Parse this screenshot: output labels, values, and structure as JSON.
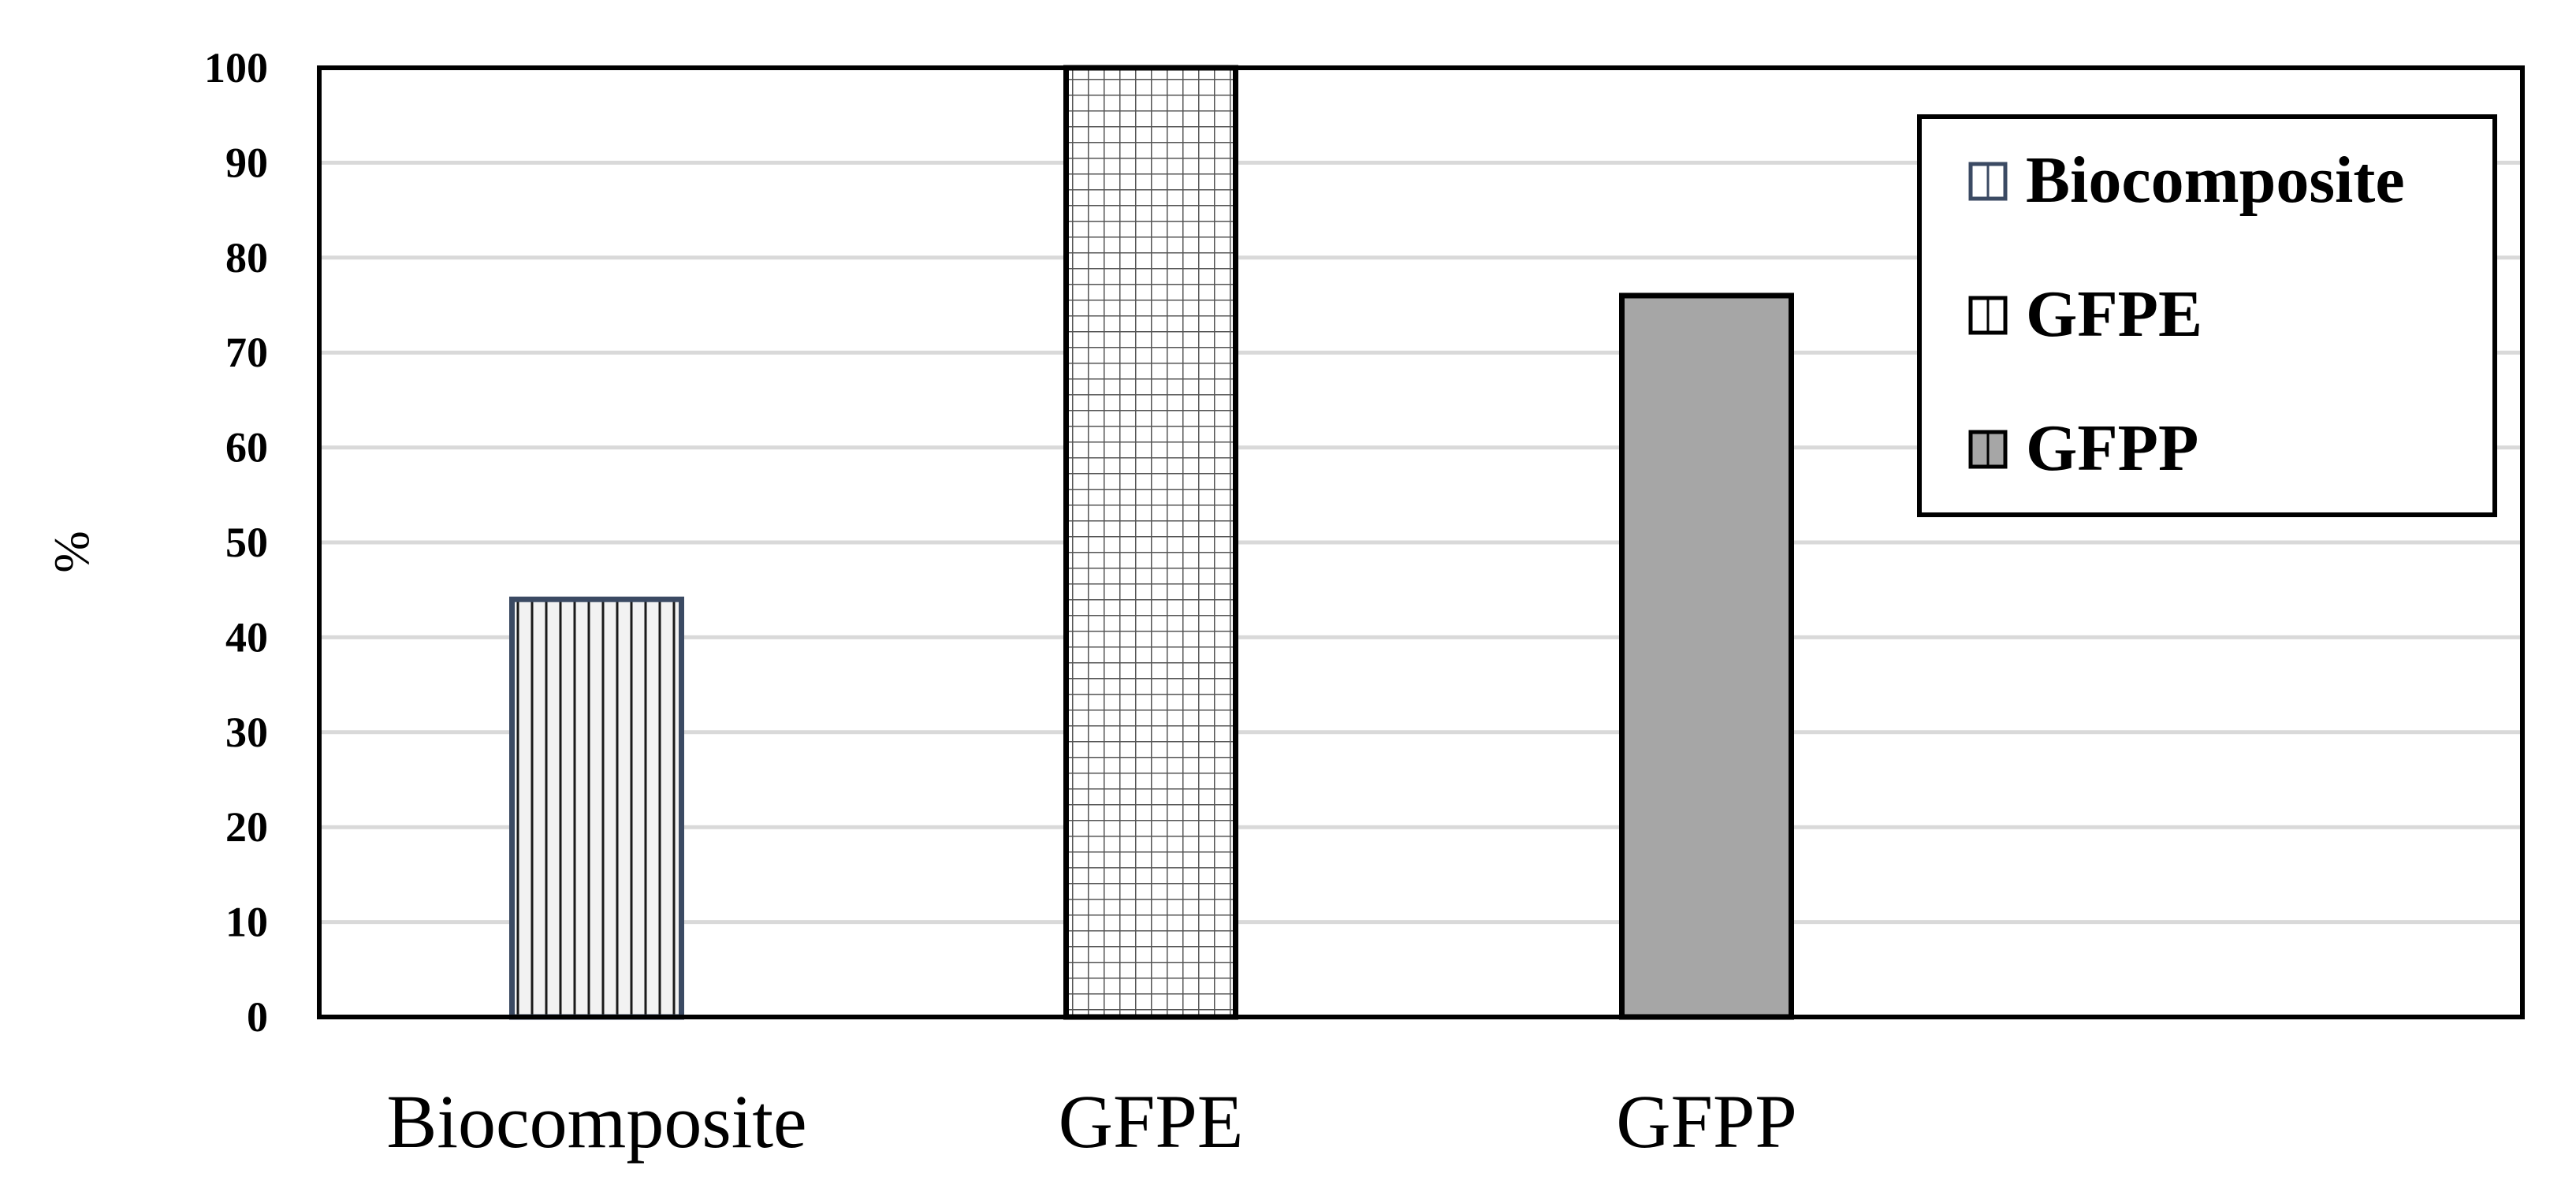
{
  "chart_data": {
    "type": "bar",
    "title": "",
    "xlabel": "",
    "ylabel": "%",
    "ylim": [
      0,
      100
    ],
    "yticks": [
      0,
      10,
      20,
      30,
      40,
      50,
      60,
      70,
      80,
      90,
      100
    ],
    "grid": true,
    "legend_position": "top-right",
    "categories": [
      "Biocomposite",
      "GFPE",
      "GFPP"
    ],
    "values": [
      44,
      100,
      76
    ],
    "series_styles": [
      {
        "name": "Biocomposite",
        "pattern": "vertical-lines",
        "fill": "#f2f2f2",
        "stroke": "#3b4a63"
      },
      {
        "name": "GFPE",
        "pattern": "grid",
        "fill": "#ffffff",
        "stroke": "#000000"
      },
      {
        "name": "GFPP",
        "pattern": "solid",
        "fill": "#a6a6a6",
        "stroke": "#000000"
      }
    ],
    "legend": [
      "Biocomposite",
      "GFPE",
      "GFPP"
    ]
  }
}
